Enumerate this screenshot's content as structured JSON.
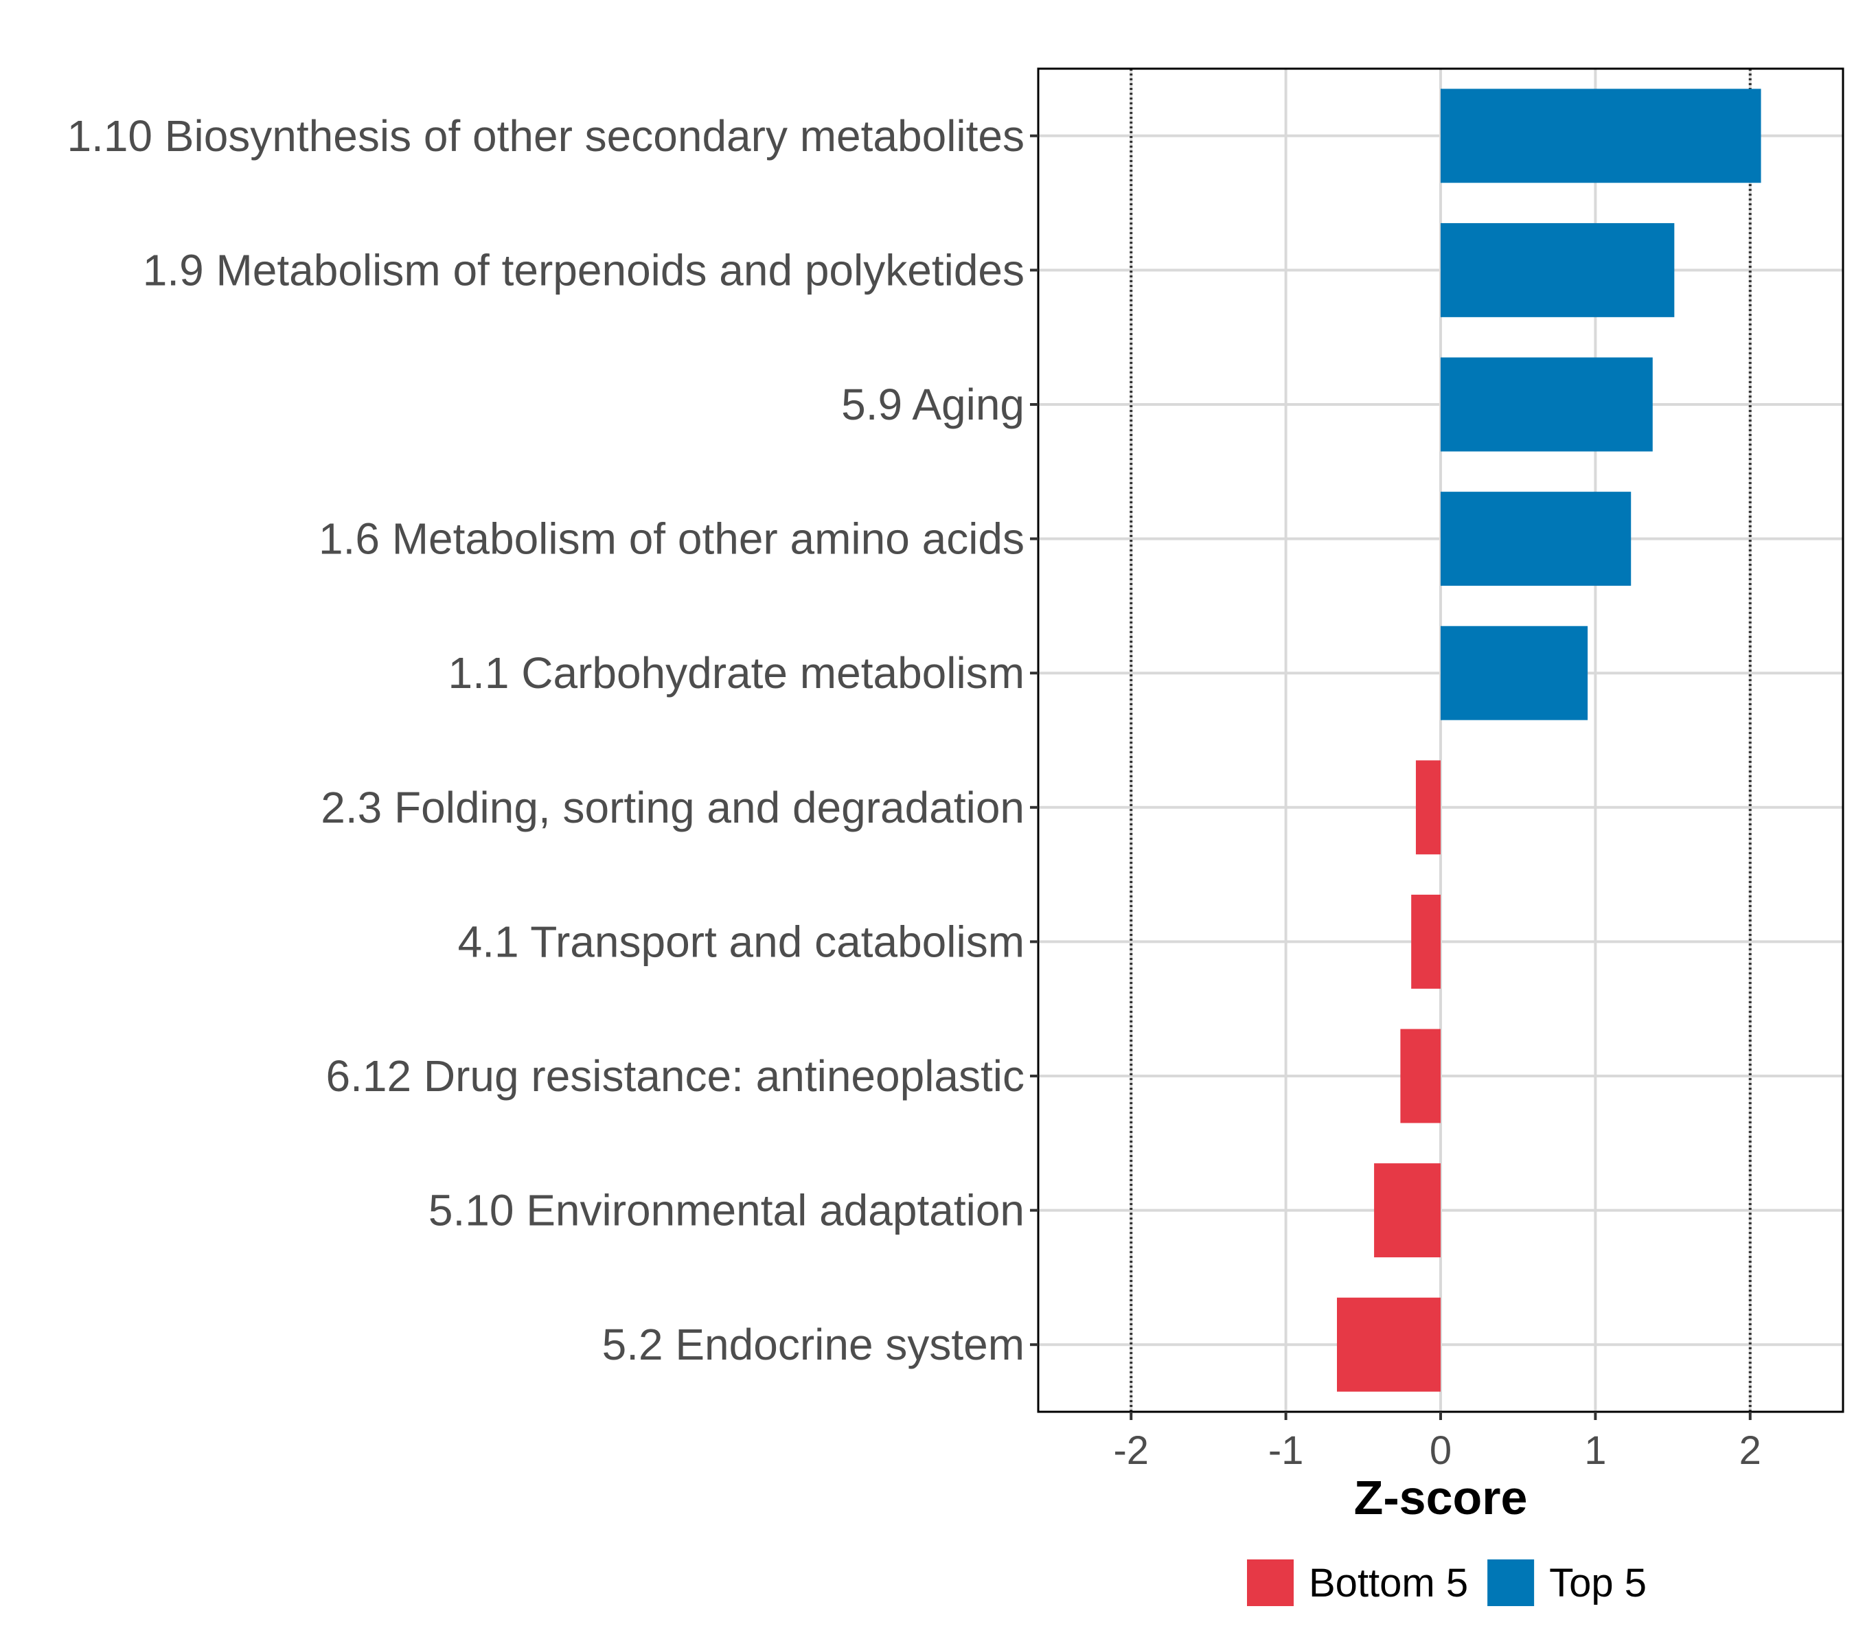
{
  "chart_data": {
    "type": "bar",
    "orientation": "horizontal",
    "title": "",
    "xlabel": "Z-score",
    "ylabel": "",
    "xlim": [
      -2.6,
      2.6
    ],
    "xticks": [
      -2,
      -1,
      0,
      1,
      2
    ],
    "reference_lines": [
      -2,
      2
    ],
    "grid": true,
    "legend_position": "bottom",
    "categories": [
      "1.10 Biosynthesis of other secondary metabolites",
      "1.9 Metabolism of terpenoids and polyketides",
      "5.9 Aging",
      "1.6 Metabolism of other amino acids",
      "1.1 Carbohydrate metabolism",
      "2.3 Folding, sorting and degradation",
      "4.1 Transport and catabolism",
      "6.12 Drug resistance: antineoplastic",
      "5.10 Environmental adaptation",
      "5.2 Endocrine system"
    ],
    "values": [
      2.07,
      1.51,
      1.37,
      1.23,
      0.95,
      -0.16,
      -0.19,
      -0.26,
      -0.43,
      -0.67
    ],
    "groups": [
      "Top 5",
      "Top 5",
      "Top 5",
      "Top 5",
      "Top 5",
      "Bottom 5",
      "Bottom 5",
      "Bottom 5",
      "Bottom 5",
      "Bottom 5"
    ],
    "legend": [
      {
        "name": "Bottom 5",
        "color": "#e63946"
      },
      {
        "name": "Top 5",
        "color": "#0077b6"
      }
    ]
  }
}
